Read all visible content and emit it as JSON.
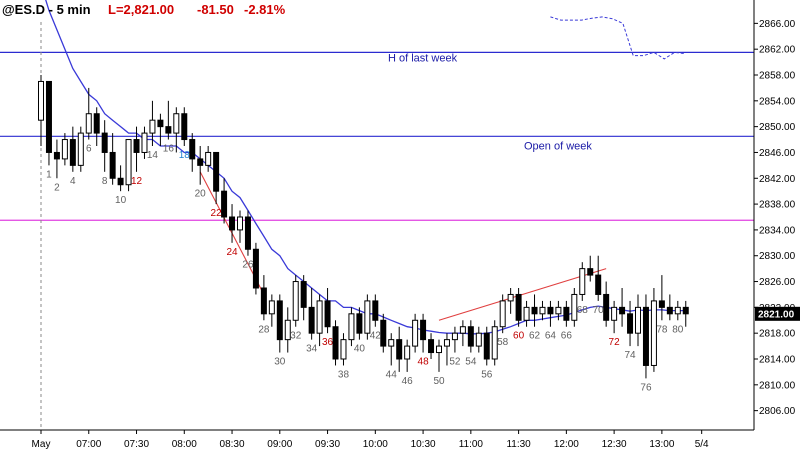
{
  "header": {
    "symbol": "@ES.D - 5 min",
    "last": "L=2,821.00",
    "change": "-81.50",
    "change_pct": "-2.81%"
  },
  "chart_data": {
    "type": "candlestick",
    "title": "@ES.D - 5 min",
    "ylim": [
      2803,
      2869
    ],
    "y_ticks": [
      2806,
      2810,
      2814,
      2818,
      2822,
      2826,
      2830,
      2834,
      2838,
      2842,
      2846,
      2850,
      2854,
      2858,
      2862,
      2866
    ],
    "y_tick_labels": [
      "2806.00",
      "2810.00",
      "2814.00",
      "2818.00",
      "2822.00",
      "2826.00",
      "2830.00",
      "2834.00",
      "2838.00",
      "2842.00",
      "2846.00",
      "2850.00",
      "2854.00",
      "2858.00",
      "2862.00",
      "2866.00"
    ],
    "x_labels": [
      {
        "bar": 0,
        "label": "May"
      },
      {
        "bar": 6,
        "label": "07:00"
      },
      {
        "bar": 12,
        "label": "07:30"
      },
      {
        "bar": 18,
        "label": "08:00"
      },
      {
        "bar": 24,
        "label": "08:30"
      },
      {
        "bar": 30,
        "label": "09:00"
      },
      {
        "bar": 36,
        "label": "09:30"
      },
      {
        "bar": 42,
        "label": "10:00"
      },
      {
        "bar": 48,
        "label": "10:30"
      },
      {
        "bar": 54,
        "label": "11:00"
      },
      {
        "bar": 60,
        "label": "11:30"
      },
      {
        "bar": 66,
        "label": "12:00"
      },
      {
        "bar": 72,
        "label": "12:30"
      },
      {
        "bar": 78,
        "label": "13:00"
      },
      {
        "bar": 83,
        "label": "5/4"
      }
    ],
    "candles": [
      [
        2851,
        2858,
        2847,
        2857
      ],
      [
        2857,
        2857,
        2844,
        2846
      ],
      [
        2846,
        2848,
        2842,
        2845
      ],
      [
        2845,
        2849,
        2844,
        2848
      ],
      [
        2848,
        2850,
        2843,
        2844
      ],
      [
        2844,
        2850,
        2843,
        2849
      ],
      [
        2849,
        2856,
        2848,
        2852
      ],
      [
        2852,
        2853,
        2847,
        2849
      ],
      [
        2849,
        2851,
        2843,
        2846
      ],
      [
        2846,
        2849,
        2841,
        2842
      ],
      [
        2842,
        2844,
        2840,
        2841
      ],
      [
        2841,
        2848,
        2840,
        2848
      ],
      [
        2848,
        2850,
        2843,
        2846
      ],
      [
        2846,
        2850,
        2845,
        2849
      ],
      [
        2849,
        2854,
        2847,
        2851
      ],
      [
        2851,
        2852,
        2847,
        2850
      ],
      [
        2850,
        2854,
        2848,
        2849
      ],
      [
        2849,
        2853,
        2846,
        2852
      ],
      [
        2852,
        2853,
        2847,
        2848
      ],
      [
        2848,
        2849,
        2843,
        2845
      ],
      [
        2845,
        2847,
        2841,
        2844
      ],
      [
        2844,
        2847,
        2843,
        2846
      ],
      [
        2846,
        2846,
        2838,
        2840
      ],
      [
        2840,
        2842,
        2835,
        2836
      ],
      [
        2836,
        2838,
        2832,
        2834
      ],
      [
        2834,
        2837,
        2832,
        2836
      ],
      [
        2836,
        2837,
        2830,
        2831
      ],
      [
        2831,
        2832,
        2824,
        2825
      ],
      [
        2825,
        2827,
        2820,
        2821
      ],
      [
        2821,
        2824,
        2819,
        2823
      ],
      [
        2823,
        2824,
        2815,
        2817
      ],
      [
        2817,
        2822,
        2815,
        2820
      ],
      [
        2820,
        2827,
        2819,
        2826
      ],
      [
        2826,
        2827,
        2820,
        2822
      ],
      [
        2822,
        2825,
        2817,
        2818
      ],
      [
        2818,
        2824,
        2816,
        2823
      ],
      [
        2823,
        2825,
        2818,
        2819
      ],
      [
        2819,
        2820,
        2813,
        2814
      ],
      [
        2814,
        2818,
        2813,
        2817
      ],
      [
        2817,
        2822,
        2816,
        2821
      ],
      [
        2821,
        2822,
        2817,
        2818
      ],
      [
        2818,
        2824,
        2817,
        2823
      ],
      [
        2823,
        2824,
        2819,
        2820
      ],
      [
        2820,
        2821,
        2815,
        2816
      ],
      [
        2816,
        2818,
        2813,
        2817
      ],
      [
        2817,
        2819,
        2812,
        2814
      ],
      [
        2814,
        2817,
        2812,
        2816
      ],
      [
        2816,
        2821,
        2815,
        2820
      ],
      [
        2820,
        2821,
        2815,
        2817
      ],
      [
        2817,
        2818,
        2814,
        2815
      ],
      [
        2815,
        2817,
        2812,
        2816
      ],
      [
        2816,
        2818,
        2813,
        2817
      ],
      [
        2817,
        2819,
        2815,
        2818
      ],
      [
        2818,
        2820,
        2816,
        2819
      ],
      [
        2819,
        2820,
        2815,
        2816
      ],
      [
        2816,
        2819,
        2815,
        2818
      ],
      [
        2818,
        2819,
        2813,
        2814
      ],
      [
        2814,
        2820,
        2813,
        2819
      ],
      [
        2819,
        2824,
        2818,
        2823
      ],
      [
        2823,
        2825,
        2821,
        2824
      ],
      [
        2824,
        2825,
        2819,
        2820
      ],
      [
        2820,
        2823,
        2819,
        2822
      ],
      [
        2822,
        2824,
        2819,
        2821
      ],
      [
        2821,
        2823,
        2820,
        2822
      ],
      [
        2822,
        2823,
        2819,
        2821
      ],
      [
        2821,
        2823,
        2820,
        2822
      ],
      [
        2822,
        2823,
        2819,
        2820
      ],
      [
        2820,
        2825,
        2819,
        2824
      ],
      [
        2824,
        2829,
        2823,
        2828
      ],
      [
        2828,
        2830,
        2826,
        2827
      ],
      [
        2827,
        2830,
        2823,
        2824
      ],
      [
        2824,
        2826,
        2819,
        2820
      ],
      [
        2820,
        2823,
        2818,
        2822
      ],
      [
        2822,
        2825,
        2819,
        2821
      ],
      [
        2821,
        2823,
        2816,
        2818
      ],
      [
        2818,
        2824,
        2816,
        2822
      ],
      [
        2822,
        2824,
        2811,
        2813
      ],
      [
        2813,
        2825,
        2812,
        2823
      ],
      [
        2823,
        2827,
        2820,
        2822
      ],
      [
        2822,
        2824,
        2820,
        2821
      ],
      [
        2821,
        2823,
        2820,
        2822
      ],
      [
        2822,
        2823,
        2819,
        2821
      ]
    ],
    "bar_numbers": [
      {
        "bar": 1,
        "text": "1",
        "color": "#606060"
      },
      {
        "bar": 2,
        "text": "2",
        "color": "#606060"
      },
      {
        "bar": 4,
        "text": "4",
        "color": "#606060"
      },
      {
        "bar": 6,
        "text": "6",
        "color": "#606060"
      },
      {
        "bar": 8,
        "text": "8",
        "color": "#606060"
      },
      {
        "bar": 10,
        "text": "10",
        "color": "#606060"
      },
      {
        "bar": 12,
        "text": "12",
        "color": "#c00000"
      },
      {
        "bar": 14,
        "text": "14",
        "color": "#606060"
      },
      {
        "bar": 16,
        "text": "16",
        "color": "#606060"
      },
      {
        "bar": 18,
        "text": "18",
        "color": "#1e7fd0"
      },
      {
        "bar": 20,
        "text": "20",
        "color": "#606060"
      },
      {
        "bar": 22,
        "text": "22",
        "color": "#c00000"
      },
      {
        "bar": 24,
        "text": "24",
        "color": "#c00000"
      },
      {
        "bar": 26,
        "text": "26",
        "color": "#606060"
      },
      {
        "bar": 28,
        "text": "28",
        "color": "#606060"
      },
      {
        "bar": 30,
        "text": "30",
        "color": "#606060"
      },
      {
        "bar": 32,
        "text": "32",
        "color": "#606060"
      },
      {
        "bar": 34,
        "text": "34",
        "color": "#606060"
      },
      {
        "bar": 36,
        "text": "36",
        "color": "#c00000"
      },
      {
        "bar": 38,
        "text": "38",
        "color": "#606060"
      },
      {
        "bar": 40,
        "text": "40",
        "color": "#606060"
      },
      {
        "bar": 42,
        "text": "42",
        "color": "#606060"
      },
      {
        "bar": 44,
        "text": "44",
        "color": "#606060"
      },
      {
        "bar": 46,
        "text": "46",
        "color": "#606060"
      },
      {
        "bar": 48,
        "text": "48",
        "color": "#c00000"
      },
      {
        "bar": 50,
        "text": "50",
        "color": "#606060"
      },
      {
        "bar": 52,
        "text": "52",
        "color": "#606060"
      },
      {
        "bar": 54,
        "text": "54",
        "color": "#606060"
      },
      {
        "bar": 56,
        "text": "56",
        "color": "#606060"
      },
      {
        "bar": 58,
        "text": "58",
        "color": "#606060"
      },
      {
        "bar": 60,
        "text": "60",
        "color": "#c00000"
      },
      {
        "bar": 62,
        "text": "62",
        "color": "#606060"
      },
      {
        "bar": 64,
        "text": "64",
        "color": "#606060"
      },
      {
        "bar": 66,
        "text": "66",
        "color": "#606060"
      },
      {
        "bar": 68,
        "text": "68",
        "color": "#606060"
      },
      {
        "bar": 70,
        "text": "70",
        "color": "#606060"
      },
      {
        "bar": 72,
        "text": "72",
        "color": "#c00000"
      },
      {
        "bar": 74,
        "text": "74",
        "color": "#606060"
      },
      {
        "bar": 76,
        "text": "76",
        "color": "#606060"
      },
      {
        "bar": 78,
        "text": "78",
        "color": "#606060"
      },
      {
        "bar": 80,
        "text": "80",
        "color": "#606060"
      }
    ],
    "ema": [
      2872,
      2868,
      2865,
      2862,
      2859,
      2857,
      2855,
      2854,
      2852,
      2851,
      2850,
      2849,
      2849,
      2848,
      2848,
      2847,
      2847,
      2847,
      2846,
      2846,
      2845,
      2844,
      2843,
      2842,
      2840,
      2839,
      2837,
      2835,
      2833,
      2831,
      2830,
      2828,
      2827,
      2826,
      2825,
      2824,
      2823,
      2823,
      2822,
      2822,
      2821.5,
      2821,
      2821,
      2820.5,
      2820,
      2819.5,
      2819,
      2818.8,
      2818.5,
      2818.3,
      2818.1,
      2818,
      2818,
      2818,
      2817.9,
      2817.9,
      2818,
      2818.2,
      2818.6,
      2819,
      2819.5,
      2820,
      2820,
      2820.2,
      2820.4,
      2820.6,
      2820.8,
      2821.2,
      2821.6,
      2822,
      2822.2,
      2822,
      2821.8,
      2821.6,
      2821.4,
      2821.6,
      2821.5,
      2821.6,
      2821.6,
      2821.5,
      2821.5,
      2821.5
    ],
    "levels": [
      {
        "name": "H of last week",
        "value": 2861.5,
        "color": "#2b2bd0"
      },
      {
        "name": "Open of week",
        "value": 2848.5,
        "color": "#2b2bd0"
      },
      {
        "name": "",
        "value": 2835.5,
        "color": "#e040e0"
      }
    ],
    "trend_lines": [
      {
        "from": {
          "bar": 20,
          "price": 2843
        },
        "to": {
          "bar": 28,
          "price": 2824
        },
        "color": "#e04040"
      },
      {
        "from": {
          "bar": 50,
          "price": 2820
        },
        "to": {
          "bar": 71,
          "price": 2828
        },
        "color": "#e04040"
      }
    ],
    "dashed_line": [
      2867,
      2866.5,
      2866.5,
      2866.5,
      2866.8,
      2867,
      2866.7,
      2866,
      2861,
      2861,
      2861.5,
      2860.5,
      2861.5,
      2861.3
    ],
    "session_divider_bar": 0,
    "last_price": {
      "value": 2821,
      "label": "2821.00",
      "color": "#000000"
    },
    "grid": false
  }
}
